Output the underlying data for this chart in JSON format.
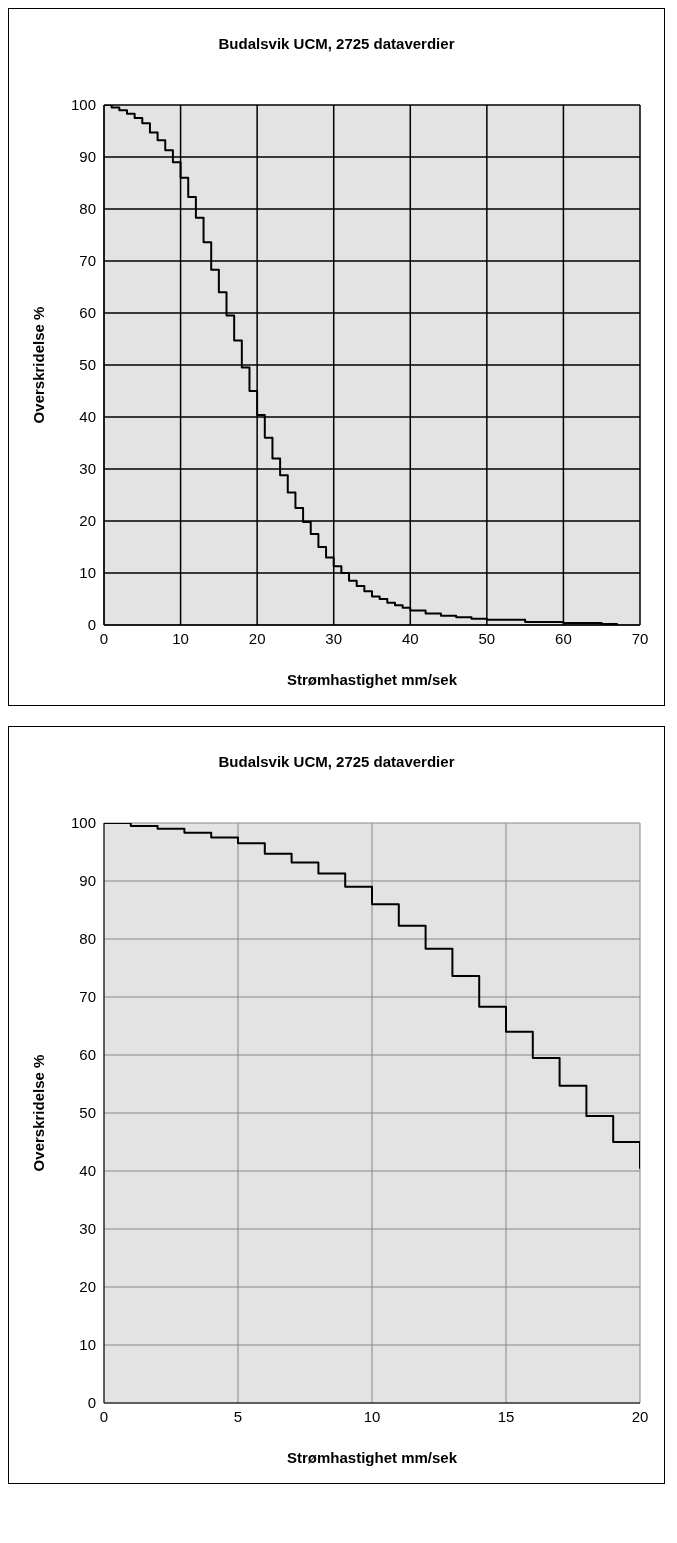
{
  "chart_data": [
    {
      "type": "step",
      "title": "Budalsvik UCM, 2725 dataverdier",
      "xlabel": "Strømhastighet mm/sek",
      "ylabel": "Overskridelse %",
      "xlim": [
        0,
        70
      ],
      "xticks": [
        0,
        10,
        20,
        30,
        40,
        50,
        60,
        70
      ],
      "ylim": [
        0,
        100
      ],
      "yticks": [
        0,
        10,
        20,
        30,
        40,
        50,
        60,
        70,
        80,
        90,
        100
      ],
      "grid": true,
      "legend": false,
      "series": [
        {
          "color": "#000000",
          "x": [
            0,
            1,
            2,
            3,
            4,
            5,
            6,
            7,
            8,
            9,
            10,
            11,
            12,
            13,
            14,
            15,
            16,
            17,
            18,
            19,
            20,
            21,
            22,
            23,
            24,
            25,
            26,
            27,
            28,
            29,
            30,
            31,
            32,
            33,
            34,
            35,
            36,
            37,
            38,
            39,
            40,
            42,
            44,
            46,
            48,
            50,
            55,
            60,
            65,
            67
          ],
          "values": [
            100,
            99.5,
            99,
            98.3,
            97.5,
            96.5,
            94.7,
            93.2,
            91.3,
            89,
            86,
            82.3,
            78.3,
            73.6,
            68.3,
            64,
            59.5,
            54.7,
            49.5,
            45,
            40.4,
            36,
            32,
            28.8,
            25.5,
            22.5,
            19.8,
            17.5,
            15,
            13,
            11.3,
            10,
            8.5,
            7.5,
            6.5,
            5.5,
            5,
            4.3,
            3.8,
            3.3,
            2.8,
            2.2,
            1.8,
            1.5,
            1.2,
            1,
            0.6,
            0.4,
            0.2,
            0
          ]
        }
      ]
    },
    {
      "type": "step",
      "title": "Budalsvik UCM, 2725 dataverdier",
      "xlabel": "Strømhastighet mm/sek",
      "ylabel": "Overskridelse %",
      "xlim": [
        0,
        20
      ],
      "xticks": [
        0,
        5,
        10,
        15,
        20
      ],
      "ylim": [
        0,
        100
      ],
      "yticks": [
        0,
        10,
        20,
        30,
        40,
        50,
        60,
        70,
        80,
        90,
        100
      ],
      "grid": true,
      "legend": false,
      "series": [
        {
          "color": "#000000",
          "x": [
            0,
            1,
            2,
            3,
            4,
            5,
            6,
            7,
            8,
            9,
            10,
            11,
            12,
            13,
            14,
            15,
            16,
            17,
            18,
            19,
            20
          ],
          "values": [
            100,
            99.5,
            99,
            98.3,
            97.5,
            96.5,
            94.7,
            93.2,
            91.3,
            89,
            86,
            82.3,
            78.3,
            73.6,
            68.3,
            64,
            59.5,
            54.7,
            49.5,
            45,
            40.4
          ]
        }
      ]
    }
  ]
}
